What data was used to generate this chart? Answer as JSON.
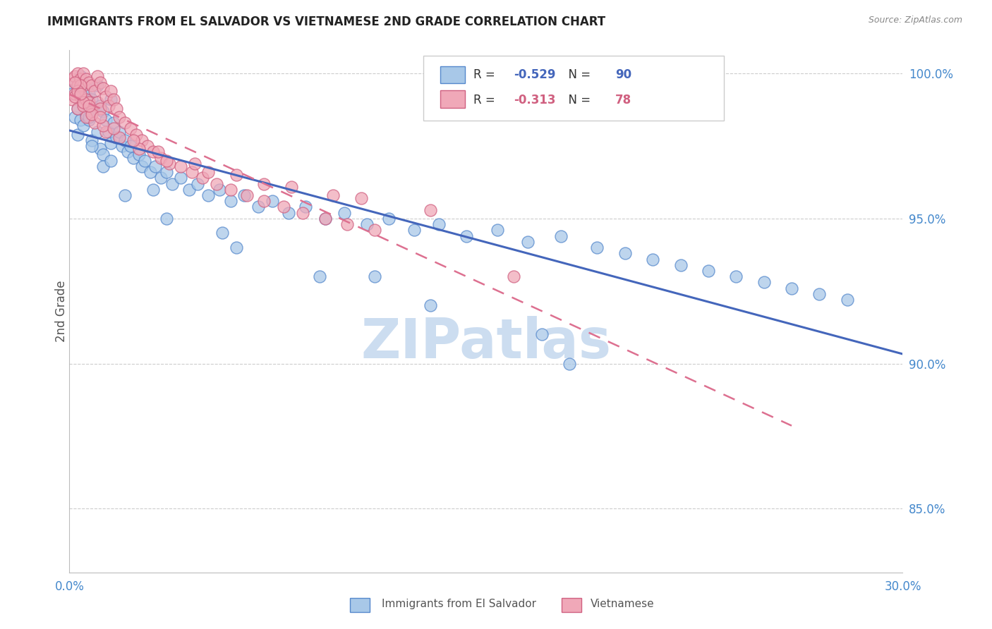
{
  "title": "IMMIGRANTS FROM EL SALVADOR VS VIETNAMESE 2ND GRADE CORRELATION CHART",
  "source": "Source: ZipAtlas.com",
  "ylabel": "2nd Grade",
  "legend1_label": "Immigrants from El Salvador",
  "legend2_label": "Vietnamese",
  "R1": -0.529,
  "N1": 90,
  "R2": -0.313,
  "N2": 78,
  "color_blue_fill": "#a8c8e8",
  "color_blue_edge": "#5588cc",
  "color_pink_fill": "#f0a8b8",
  "color_pink_edge": "#d06080",
  "color_blue_line": "#4466bb",
  "color_pink_line": "#dd7090",
  "watermark": "ZIPatlas",
  "watermark_color": "#ccddf0",
  "title_color": "#222222",
  "axis_color": "#4488cc",
  "grid_color": "#cccccc",
  "xlim": [
    0.0,
    0.3
  ],
  "ylim": [
    0.828,
    1.008
  ],
  "yticks": [
    0.85,
    0.9,
    0.95,
    1.0
  ],
  "xtick_labels": [
    "0.0%",
    "30.0%"
  ],
  "blue_x": [
    0.001,
    0.002,
    0.002,
    0.003,
    0.003,
    0.003,
    0.004,
    0.004,
    0.005,
    0.005,
    0.005,
    0.006,
    0.006,
    0.007,
    0.007,
    0.008,
    0.008,
    0.009,
    0.01,
    0.01,
    0.011,
    0.011,
    0.012,
    0.012,
    0.013,
    0.014,
    0.015,
    0.015,
    0.016,
    0.017,
    0.018,
    0.019,
    0.02,
    0.021,
    0.022,
    0.023,
    0.025,
    0.026,
    0.027,
    0.029,
    0.031,
    0.033,
    0.035,
    0.037,
    0.04,
    0.043,
    0.046,
    0.05,
    0.054,
    0.058,
    0.063,
    0.068,
    0.073,
    0.079,
    0.085,
    0.092,
    0.099,
    0.107,
    0.115,
    0.124,
    0.133,
    0.143,
    0.154,
    0.165,
    0.177,
    0.19,
    0.2,
    0.21,
    0.22,
    0.23,
    0.24,
    0.25,
    0.26,
    0.27,
    0.28,
    0.004,
    0.008,
    0.012,
    0.02,
    0.035,
    0.06,
    0.09,
    0.13,
    0.17,
    0.007,
    0.015,
    0.03,
    0.055,
    0.11,
    0.18
  ],
  "blue_y": [
    0.993,
    0.997,
    0.985,
    0.996,
    0.988,
    0.979,
    0.994,
    0.984,
    0.997,
    0.99,
    0.982,
    0.995,
    0.986,
    0.993,
    0.984,
    0.991,
    0.977,
    0.988,
    0.996,
    0.98,
    0.989,
    0.974,
    0.987,
    0.972,
    0.984,
    0.98,
    0.991,
    0.976,
    0.983,
    0.978,
    0.98,
    0.975,
    0.977,
    0.973,
    0.975,
    0.971,
    0.972,
    0.968,
    0.97,
    0.966,
    0.968,
    0.964,
    0.966,
    0.962,
    0.964,
    0.96,
    0.962,
    0.958,
    0.96,
    0.956,
    0.958,
    0.954,
    0.956,
    0.952,
    0.954,
    0.95,
    0.952,
    0.948,
    0.95,
    0.946,
    0.948,
    0.944,
    0.946,
    0.942,
    0.944,
    0.94,
    0.938,
    0.936,
    0.934,
    0.932,
    0.93,
    0.928,
    0.926,
    0.924,
    0.922,
    0.999,
    0.975,
    0.968,
    0.958,
    0.95,
    0.94,
    0.93,
    0.92,
    0.91,
    0.985,
    0.97,
    0.96,
    0.945,
    0.93,
    0.9
  ],
  "pink_x": [
    0.001,
    0.001,
    0.002,
    0.002,
    0.003,
    0.003,
    0.003,
    0.004,
    0.004,
    0.005,
    0.005,
    0.005,
    0.006,
    0.006,
    0.007,
    0.007,
    0.008,
    0.008,
    0.009,
    0.01,
    0.01,
    0.011,
    0.011,
    0.012,
    0.013,
    0.014,
    0.015,
    0.016,
    0.017,
    0.018,
    0.02,
    0.022,
    0.024,
    0.026,
    0.028,
    0.03,
    0.033,
    0.036,
    0.04,
    0.044,
    0.048,
    0.053,
    0.058,
    0.064,
    0.07,
    0.077,
    0.084,
    0.092,
    0.1,
    0.11,
    0.002,
    0.004,
    0.006,
    0.009,
    0.013,
    0.003,
    0.005,
    0.008,
    0.012,
    0.018,
    0.025,
    0.035,
    0.05,
    0.07,
    0.095,
    0.002,
    0.004,
    0.007,
    0.011,
    0.016,
    0.023,
    0.032,
    0.045,
    0.06,
    0.08,
    0.105,
    0.13,
    0.16
  ],
  "pink_y": [
    0.998,
    0.991,
    0.999,
    0.993,
    1.0,
    0.996,
    0.988,
    0.998,
    0.992,
    1.0,
    0.996,
    0.989,
    0.998,
    0.991,
    0.997,
    0.99,
    0.996,
    0.987,
    0.994,
    0.999,
    0.99,
    0.997,
    0.988,
    0.995,
    0.992,
    0.989,
    0.994,
    0.991,
    0.988,
    0.985,
    0.983,
    0.981,
    0.979,
    0.977,
    0.975,
    0.973,
    0.971,
    0.969,
    0.968,
    0.966,
    0.964,
    0.962,
    0.96,
    0.958,
    0.956,
    0.954,
    0.952,
    0.95,
    0.948,
    0.946,
    0.992,
    0.996,
    0.985,
    0.983,
    0.98,
    0.994,
    0.99,
    0.986,
    0.982,
    0.978,
    0.974,
    0.97,
    0.966,
    0.962,
    0.958,
    0.997,
    0.993,
    0.989,
    0.985,
    0.981,
    0.977,
    0.973,
    0.969,
    0.965,
    0.961,
    0.957,
    0.953,
    0.93
  ]
}
